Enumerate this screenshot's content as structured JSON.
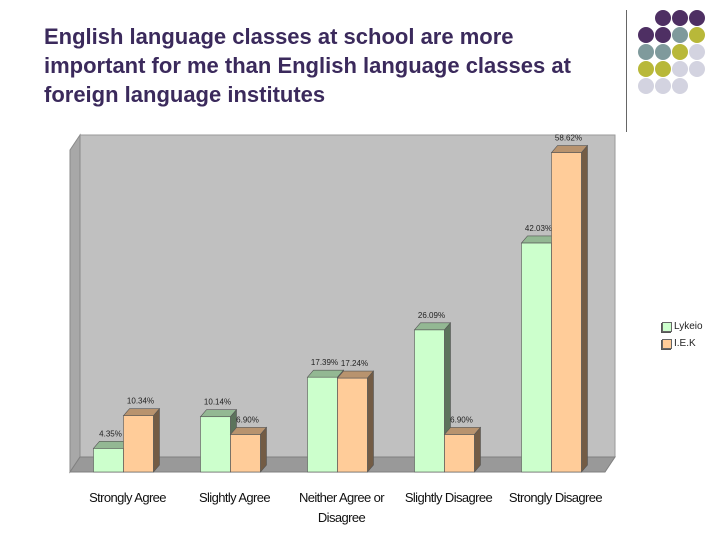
{
  "title": {
    "lines": [
      "English language classes at school are more",
      "important for me than English language classes at",
      "foreign language institutes"
    ]
  },
  "decor": {
    "colors": [
      "#4e2f63",
      "#7f9a9c",
      "#b8b839",
      "#d3d3e0"
    ],
    "pattern": [
      [
        null,
        0,
        0,
        0
      ],
      [
        0,
        0,
        1,
        2
      ],
      [
        1,
        1,
        2,
        3
      ],
      [
        2,
        2,
        3,
        3
      ],
      [
        3,
        3,
        3,
        null
      ]
    ]
  },
  "chart_data": {
    "type": "bar",
    "categories": [
      [
        "Strongly Agree"
      ],
      [
        "Slightly Agree"
      ],
      [
        "Neither Agree or",
        "Disagree"
      ],
      [
        "Slightly Disagree"
      ],
      [
        "Strongly Disagree"
      ]
    ],
    "series": [
      {
        "name": "Lykeio",
        "color": "#ccffcc",
        "values": [
          4.35,
          10.14,
          17.39,
          26.09,
          42.03
        ],
        "labels": [
          "4.35%",
          "10.14%",
          "17.39%",
          "26.09%",
          "42.03%"
        ]
      },
      {
        "name": "I.E.K",
        "color": "#ffcc99",
        "values": [
          10.34,
          6.9,
          17.24,
          6.9,
          58.62
        ],
        "labels": [
          "10.34%",
          "6.90%",
          "17.24%",
          "6.90%",
          "58.62%"
        ]
      }
    ],
    "ylim": [
      0,
      60
    ],
    "grid": false,
    "legend": "right"
  }
}
